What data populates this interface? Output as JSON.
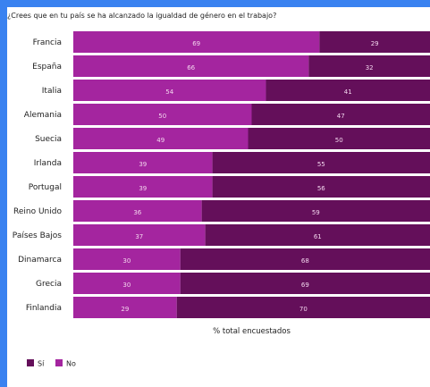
{
  "chart_data": {
    "type": "bar",
    "orientation": "horizontal",
    "stacked": true,
    "title": "¿Crees que en tu país se ha alcanzado la igualdad de género en el trabajo?",
    "xlabel": "% total encuestados",
    "ylabel": "",
    "xlim": [
      0,
      100
    ],
    "categories": [
      "Francia",
      "España",
      "Italia",
      "Alemania",
      "Suecia",
      "Irlanda",
      "Portugal",
      "Reino Unido",
      "Países Bajos",
      "Dinamarca",
      "Grecia",
      "Finlandia"
    ],
    "series": [
      {
        "name": "No",
        "color": "#a4259f",
        "values": [
          69,
          66,
          54,
          50,
          49,
          39,
          39,
          36,
          37,
          30,
          30,
          29
        ]
      },
      {
        "name": "Sí",
        "color": "#640f5a",
        "values": [
          29,
          32,
          41,
          47,
          50,
          55,
          56,
          59,
          61,
          68,
          69,
          70
        ]
      }
    ],
    "legend": {
      "position": "bottom-left",
      "order": [
        "Sí",
        "No"
      ]
    },
    "grid": false
  },
  "colors": {
    "background": "#3a82f0",
    "panel": "#ffffff"
  }
}
